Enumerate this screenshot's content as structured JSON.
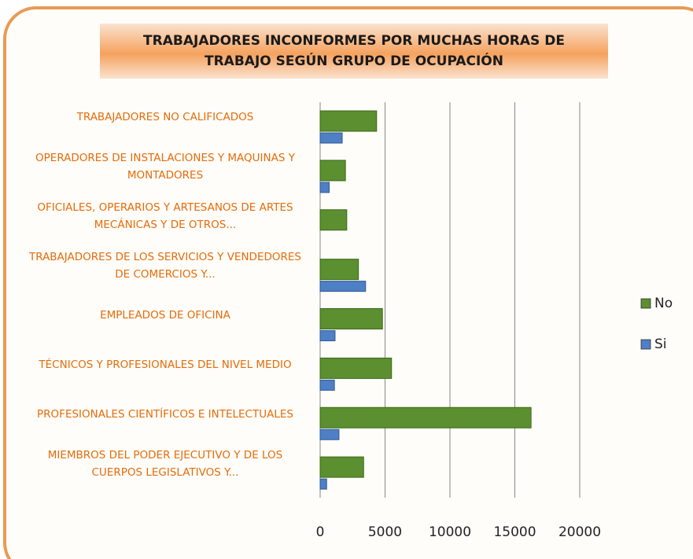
{
  "chart_data": {
    "type": "bar",
    "orientation": "horizontal",
    "title": "TRABAJADORES INCONFORMES POR MUCHAS HORAS DE TRABAJO SEGÚN GRUPO DE OCUPACIÓN",
    "categories": [
      "TRABAJADORES NO CALIFICADOS",
      "OPERADORES DE INSTALACIONES Y MAQUINAS Y MONTADORES",
      "OFICIALES, OPERARIOS Y ARTESANOS DE ARTES MECÁNICAS Y DE OTROS...",
      "TRABAJADORES DE LOS SERVICIOS Y VENDEDORES DE COMERCIOS Y...",
      "EMPLEADOS DE OFICINA",
      "TÉCNICOS Y PROFESIONALES DEL NIVEL MEDIO",
      "PROFESIONALES CIENTÍFICOS E INTELECTUALES",
      "MIEMBROS DEL PODER EJECUTIVO Y DE LOS CUERPOS LEGISLATIVOS Y..."
    ],
    "series": [
      {
        "name": "No",
        "color": "#5b8f2f",
        "values": [
          4350,
          1950,
          2050,
          2950,
          4800,
          5500,
          16250,
          3350
        ]
      },
      {
        "name": "Si",
        "color": "#4f7fc4",
        "values": [
          1700,
          700,
          0,
          3500,
          1150,
          1100,
          1450,
          500
        ]
      }
    ],
    "xlim": [
      0,
      20000
    ],
    "xticks": [
      0,
      5000,
      10000,
      15000,
      20000
    ],
    "grid": true,
    "legend": "right"
  }
}
